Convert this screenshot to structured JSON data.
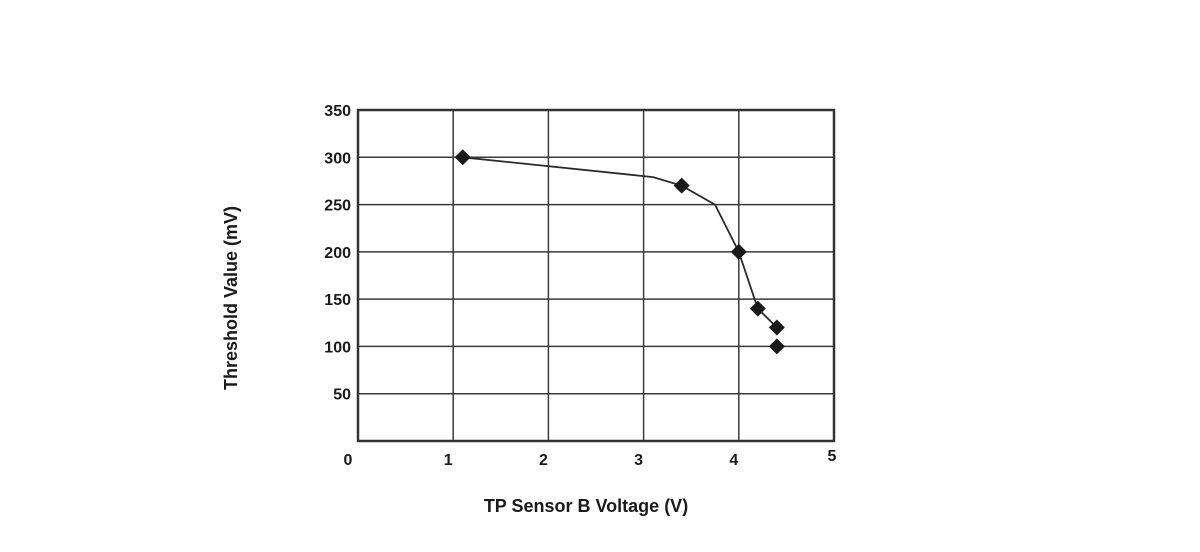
{
  "chart_data": {
    "type": "line",
    "title": "",
    "xlabel": "TP Sensor B Voltage (V)",
    "ylabel": "Threshold Value (mV)",
    "xlim": [
      0,
      5
    ],
    "ylim": [
      0,
      350
    ],
    "origin_label": "0",
    "x_ticks": [
      1,
      2,
      3,
      4,
      5
    ],
    "x_tick_labels": [
      "1",
      "2",
      "3",
      "4",
      "5"
    ],
    "y_ticks": [
      50,
      100,
      150,
      200,
      250,
      300,
      350
    ],
    "y_tick_labels": [
      "50",
      "100",
      "150",
      "200",
      "250",
      "300",
      "350"
    ],
    "grid": true,
    "legend": "none",
    "line_color": "#2a2a2a",
    "marker_color": "#1a1a1a",
    "marker_shape": "diamond",
    "line": {
      "x": [
        1.1,
        3.1,
        3.4,
        3.75,
        4.0,
        4.2,
        4.4
      ],
      "y": [
        300,
        279,
        270,
        250,
        200,
        140,
        120
      ]
    },
    "markers": {
      "x": [
        1.1,
        3.4,
        4.0,
        4.2,
        4.4,
        4.4
      ],
      "y": [
        300,
        270,
        200,
        140,
        120,
        100
      ]
    }
  }
}
